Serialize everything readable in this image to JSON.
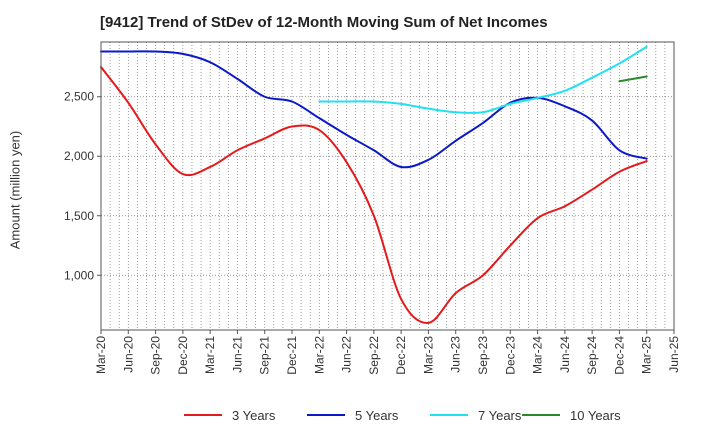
{
  "chart_data": {
    "type": "line",
    "title": "[9412]  Trend of StDev of 12-Month Moving Sum of Net Incomes",
    "xlabel": "",
    "ylabel": "Amount (million yen)",
    "x_ticks": [
      "Mar-20",
      "Jun-20",
      "Sep-20",
      "Dec-20",
      "Mar-21",
      "Jun-21",
      "Sep-21",
      "Dec-21",
      "Mar-22",
      "Jun-22",
      "Sep-22",
      "Dec-22",
      "Mar-23",
      "Jun-23",
      "Sep-23",
      "Dec-23",
      "Mar-24",
      "Jun-24",
      "Sep-24",
      "Dec-24",
      "Mar-25",
      "Jun-25"
    ],
    "y_ticks": [
      1000,
      1500,
      2000,
      2500
    ],
    "y_tick_labels": [
      "1,000",
      "1,500",
      "2,000",
      "2,500"
    ],
    "ylim": [
      540,
      2960
    ],
    "grid": true,
    "legend_position": "bottom",
    "series": [
      {
        "name": "3 Years",
        "color": "#e31a1c",
        "x": [
          "Mar-20",
          "Jun-20",
          "Sep-20",
          "Dec-20",
          "Mar-21",
          "Jun-21",
          "Sep-21",
          "Dec-21",
          "Mar-22",
          "Jun-22",
          "Sep-22",
          "Dec-22",
          "Mar-23",
          "Jun-23",
          "Sep-23",
          "Dec-23",
          "Mar-24",
          "Jun-24",
          "Sep-24",
          "Dec-24",
          "Mar-25"
        ],
        "values": [
          2750,
          2450,
          2100,
          1850,
          1910,
          2050,
          2150,
          2250,
          2220,
          1950,
          1500,
          800,
          600,
          850,
          1000,
          1250,
          1480,
          1580,
          1720,
          1870,
          1960
        ]
      },
      {
        "name": "5 Years",
        "color": "#0a18c8",
        "x": [
          "Mar-20",
          "Jun-20",
          "Sep-20",
          "Dec-20",
          "Mar-21",
          "Jun-21",
          "Sep-21",
          "Dec-21",
          "Mar-22",
          "Jun-22",
          "Sep-22",
          "Dec-22",
          "Mar-23",
          "Jun-23",
          "Sep-23",
          "Dec-23",
          "Mar-24",
          "Jun-24",
          "Sep-24",
          "Dec-24",
          "Mar-25"
        ],
        "values": [
          2880,
          2880,
          2880,
          2860,
          2790,
          2650,
          2500,
          2460,
          2320,
          2180,
          2050,
          1910,
          1970,
          2130,
          2280,
          2450,
          2490,
          2420,
          2300,
          2050,
          1980
        ]
      },
      {
        "name": "7 Years",
        "color": "#22e0f0",
        "x": [
          "Mar-22",
          "Jun-22",
          "Sep-22",
          "Dec-22",
          "Mar-23",
          "Jun-23",
          "Sep-23",
          "Dec-23",
          "Mar-24",
          "Jun-24",
          "Sep-24",
          "Dec-24",
          "Mar-25"
        ],
        "values": [
          2460,
          2460,
          2460,
          2440,
          2400,
          2370,
          2370,
          2440,
          2490,
          2550,
          2660,
          2780,
          2920
        ]
      },
      {
        "name": "10 Years",
        "color": "#2a8a2a",
        "x": [
          "Dec-24",
          "Mar-25"
        ],
        "values": [
          2630,
          2670
        ]
      }
    ]
  }
}
